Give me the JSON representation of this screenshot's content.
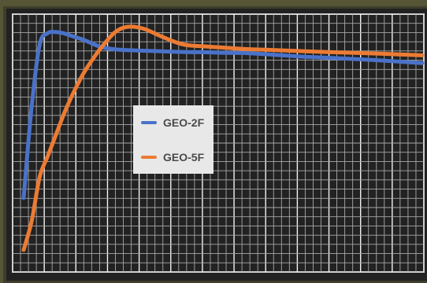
{
  "chart_data": {
    "type": "line",
    "title": "",
    "xlabel": "",
    "ylabel": "",
    "grid": true,
    "legend_position": "center-left",
    "x": [
      0,
      2,
      4,
      6,
      8,
      10,
      12,
      15,
      18,
      20,
      23,
      26,
      30,
      35,
      40,
      45,
      50,
      55,
      60,
      65,
      70,
      80,
      90,
      100
    ],
    "xlim": [
      0,
      100
    ],
    "ylim": [
      0,
      100
    ],
    "series": [
      {
        "name": "GEO-2F",
        "color": "#4a72c9",
        "values": [
          27,
          62,
          86,
          90.5,
          91,
          90.5,
          89.5,
          88,
          86,
          85,
          84.3,
          84,
          83.8,
          83.5,
          83.3,
          83.2,
          83,
          82.9,
          82.5,
          82,
          81.5,
          80.8,
          80,
          79
        ]
      },
      {
        "name": "GEO-5F",
        "color": "#ec7b33",
        "values": [
          7,
          18,
          35,
          43,
          51,
          59,
          66,
          75,
          82,
          86,
          91,
          93,
          92.3,
          89,
          86.2,
          85.5,
          85,
          84.5,
          84.2,
          83.9,
          83.6,
          83.1,
          82.6,
          82
        ]
      }
    ]
  }
}
